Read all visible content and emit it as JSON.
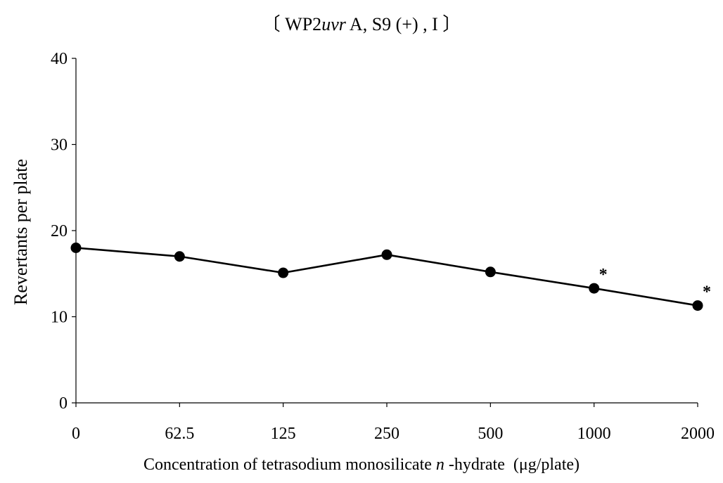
{
  "chart_data": {
    "type": "line",
    "title": {
      "open": "〔 WP2",
      "italic": "uvr",
      "close": " A, S9 (+) , I 〕"
    },
    "ylabel": "Revertants per plate",
    "xlabel": {
      "pre": "Concentration of tetrasodium monosilicate ",
      "italic": "n",
      "post": " -hydrate  (μg/plate)"
    },
    "categories": [
      "0",
      "62.5",
      "125",
      "250",
      "500",
      "1000",
      "2000"
    ],
    "values": [
      18.0,
      17.0,
      15.1,
      17.2,
      15.2,
      13.3,
      11.3
    ],
    "significance": [
      "",
      "",
      "",
      "",
      "",
      "*",
      "*"
    ],
    "ylim": [
      0,
      40
    ],
    "yticks": [
      0,
      10,
      20,
      30,
      40
    ],
    "grid": false,
    "marker": "filled-circle",
    "line_color": "#000000"
  }
}
